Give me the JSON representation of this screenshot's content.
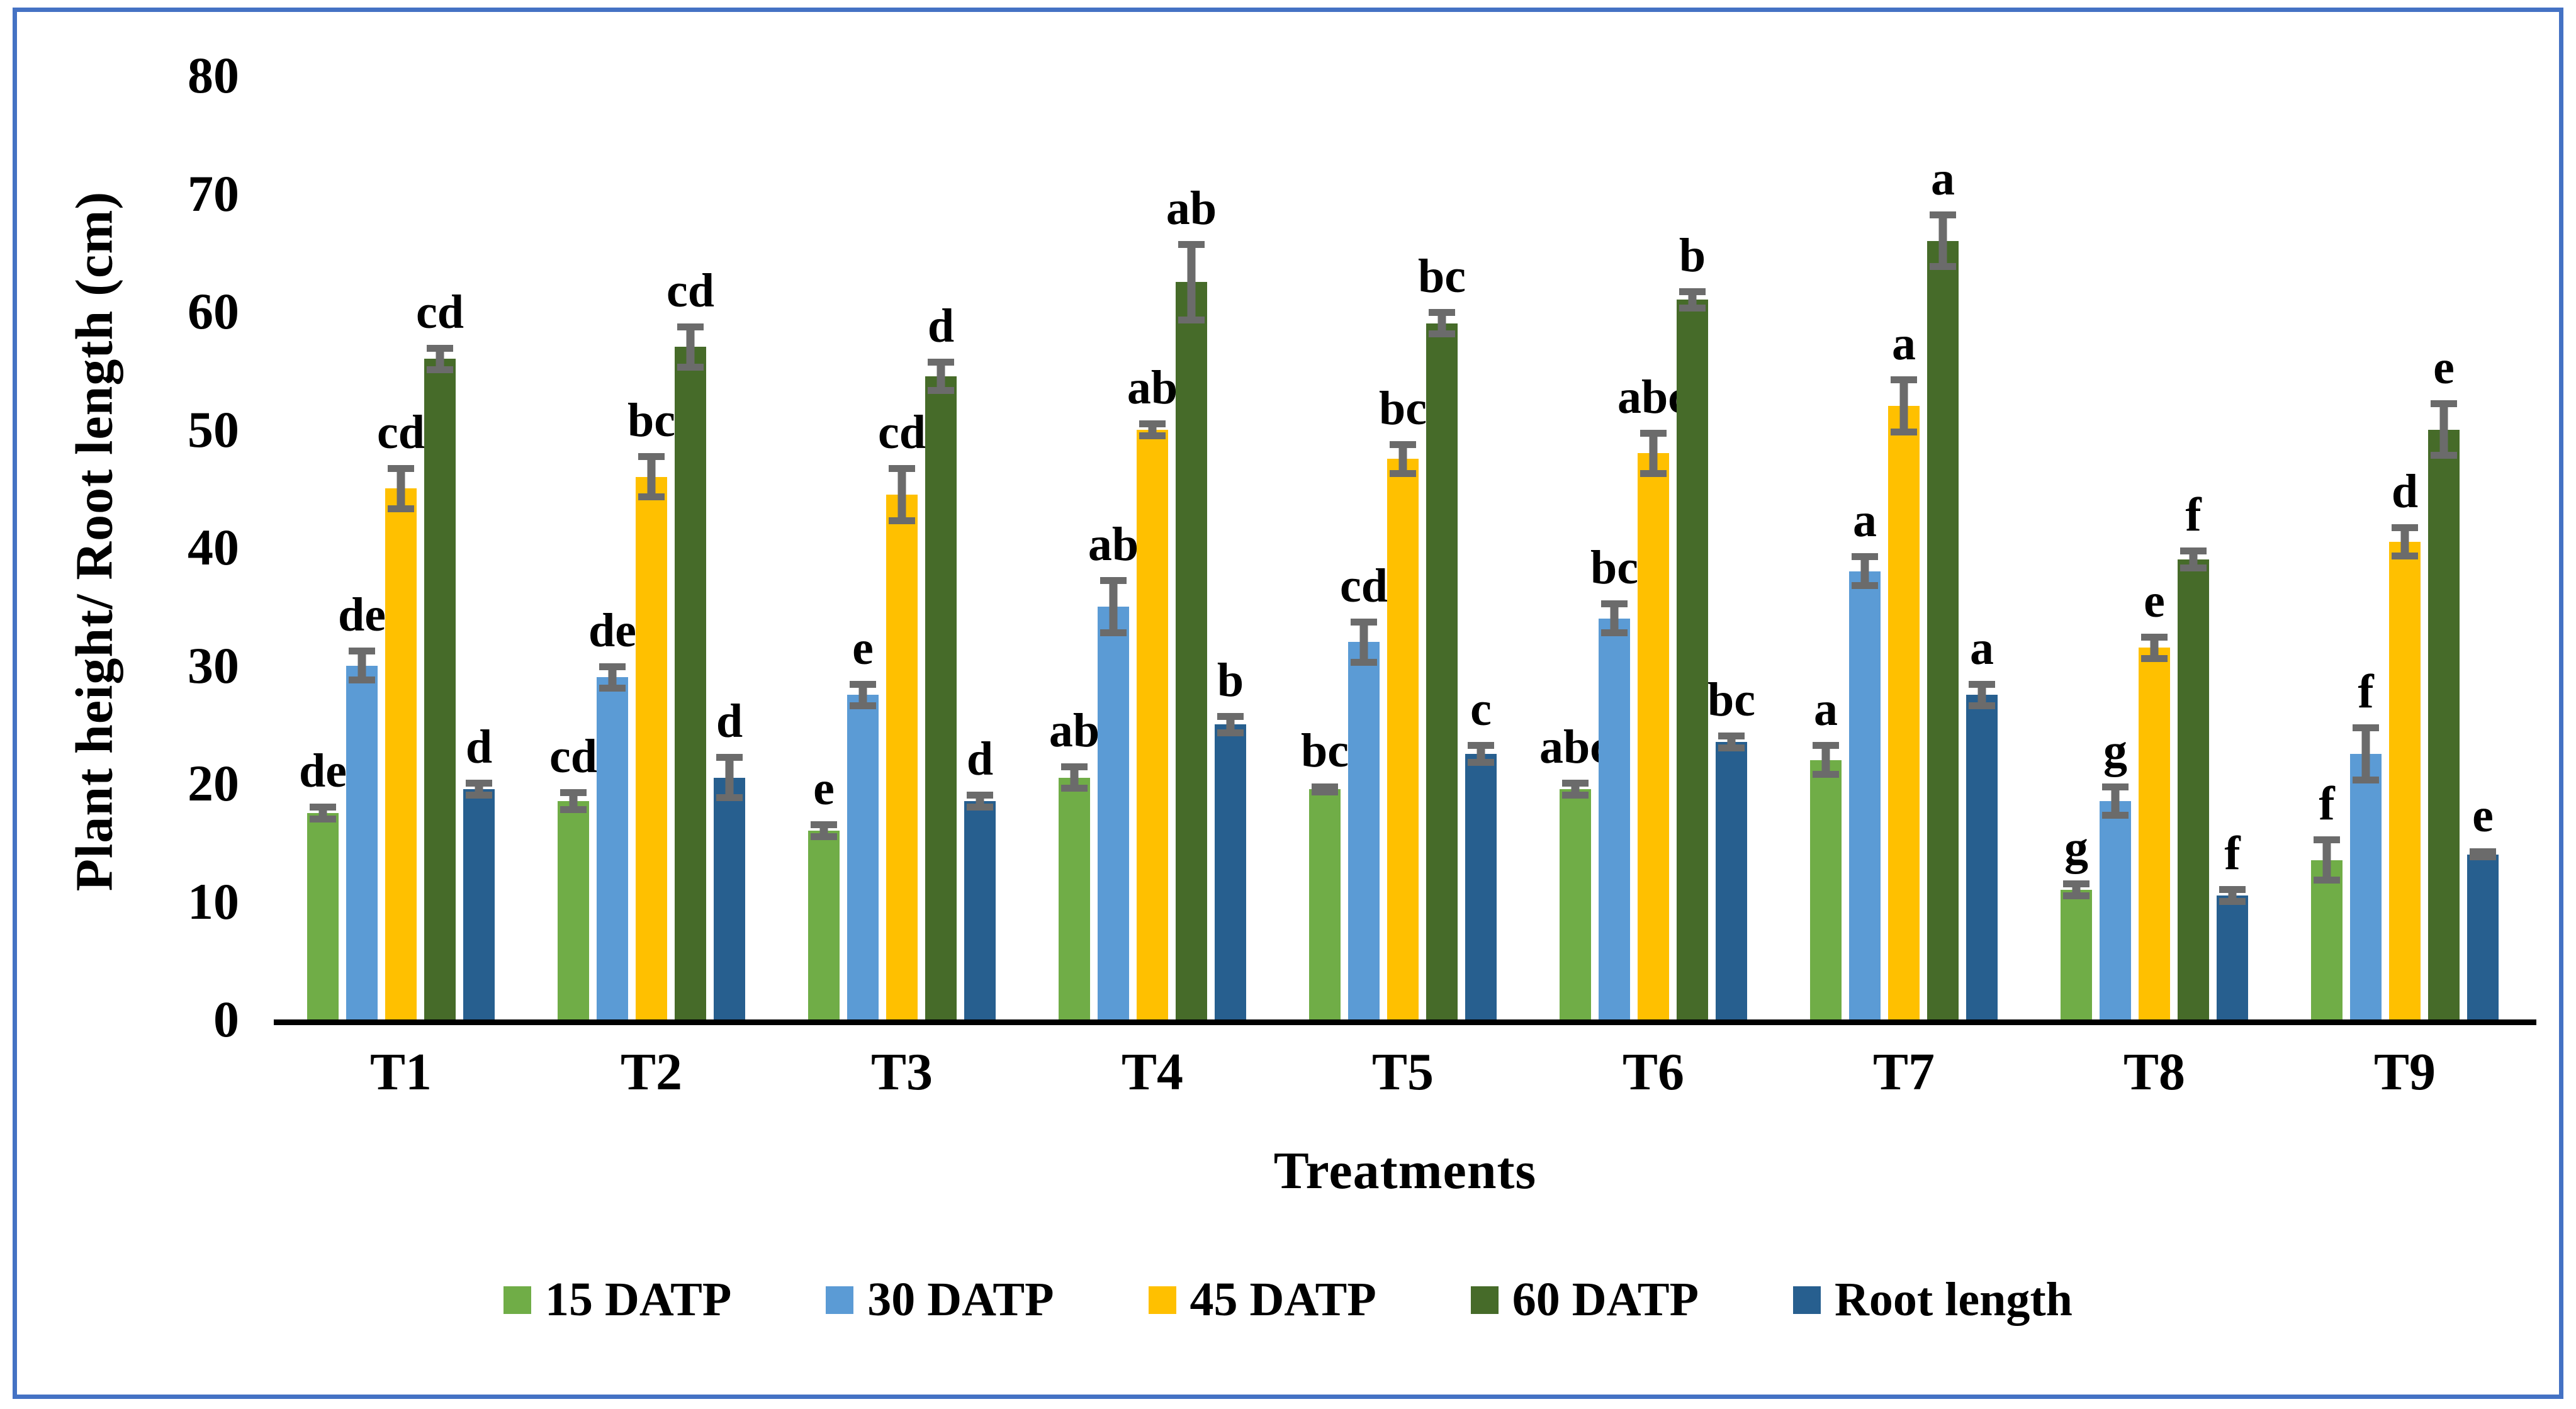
{
  "frame": {
    "border_color": "#4472C4"
  },
  "chart_data": {
    "type": "bar",
    "title": "",
    "ylabel": "Plant height/ Root length (cm)",
    "xlabel": "Treatments",
    "ylim": [
      0,
      80
    ],
    "yticks": [
      0,
      10,
      20,
      30,
      40,
      50,
      60,
      70,
      80
    ],
    "grid": false,
    "legend_position": "bottom",
    "error_bar_color": "#6B6B6B",
    "axis_color": "#000000",
    "categories": [
      "T1",
      "T2",
      "T3",
      "T4",
      "T5",
      "T6",
      "T7",
      "T8",
      "T9"
    ],
    "series": [
      {
        "name": "15 DATP",
        "color": "#70AD47",
        "values": [
          17.5,
          18.5,
          16,
          20.5,
          19.5,
          19.5,
          22,
          11,
          13.5
        ],
        "errors": [
          0.8,
          1.0,
          0.8,
          1.2,
          0.5,
          0.8,
          1.5,
          0.8,
          2.0
        ],
        "letters": [
          "de",
          "cd",
          "e",
          "ab",
          "bc",
          "abc",
          "a",
          "g",
          "f"
        ]
      },
      {
        "name": "30 DATP",
        "color": "#5B9BD5",
        "values": [
          30,
          29,
          27.5,
          35,
          32,
          34,
          38,
          18.5,
          22.5
        ],
        "errors": [
          1.5,
          1.2,
          1.2,
          2.5,
          2.0,
          1.5,
          1.5,
          1.5,
          2.5
        ],
        "letters": [
          "de",
          "de",
          "e",
          "ab",
          "cd",
          "bc",
          "a",
          "g",
          "f"
        ]
      },
      {
        "name": "45 DATP",
        "color": "#FFC000",
        "values": [
          45,
          46,
          44.5,
          50,
          47.5,
          48,
          52,
          31.5,
          40.5
        ],
        "errors": [
          2.0,
          2.0,
          2.5,
          0.8,
          1.5,
          2.0,
          2.5,
          1.2,
          1.5
        ],
        "letters": [
          "cd",
          "bc",
          "cd",
          "ab",
          "bc",
          "abc",
          "a",
          "e",
          "d"
        ]
      },
      {
        "name": "60 DATP",
        "color": "#466B29",
        "values": [
          56,
          57,
          54.5,
          62.5,
          59,
          61,
          66,
          39,
          50
        ],
        "errors": [
          1.2,
          2.0,
          1.5,
          3.5,
          1.2,
          1.0,
          2.5,
          1.0,
          2.5
        ],
        "letters": [
          "cd",
          "cd",
          "d",
          "ab",
          "bc",
          "b",
          "a",
          "f",
          "e"
        ]
      },
      {
        "name": "Root length",
        "color": "#275F8F",
        "values": [
          19.5,
          20.5,
          18.5,
          25,
          22.5,
          23.5,
          27.5,
          10.5,
          14
        ],
        "errors": [
          0.8,
          2.0,
          0.8,
          1.0,
          1.0,
          0.8,
          1.2,
          0.8,
          0.5
        ],
        "letters": [
          "d",
          "d",
          "d",
          "b",
          "c",
          "bc",
          "a",
          "f",
          "e"
        ]
      }
    ]
  }
}
